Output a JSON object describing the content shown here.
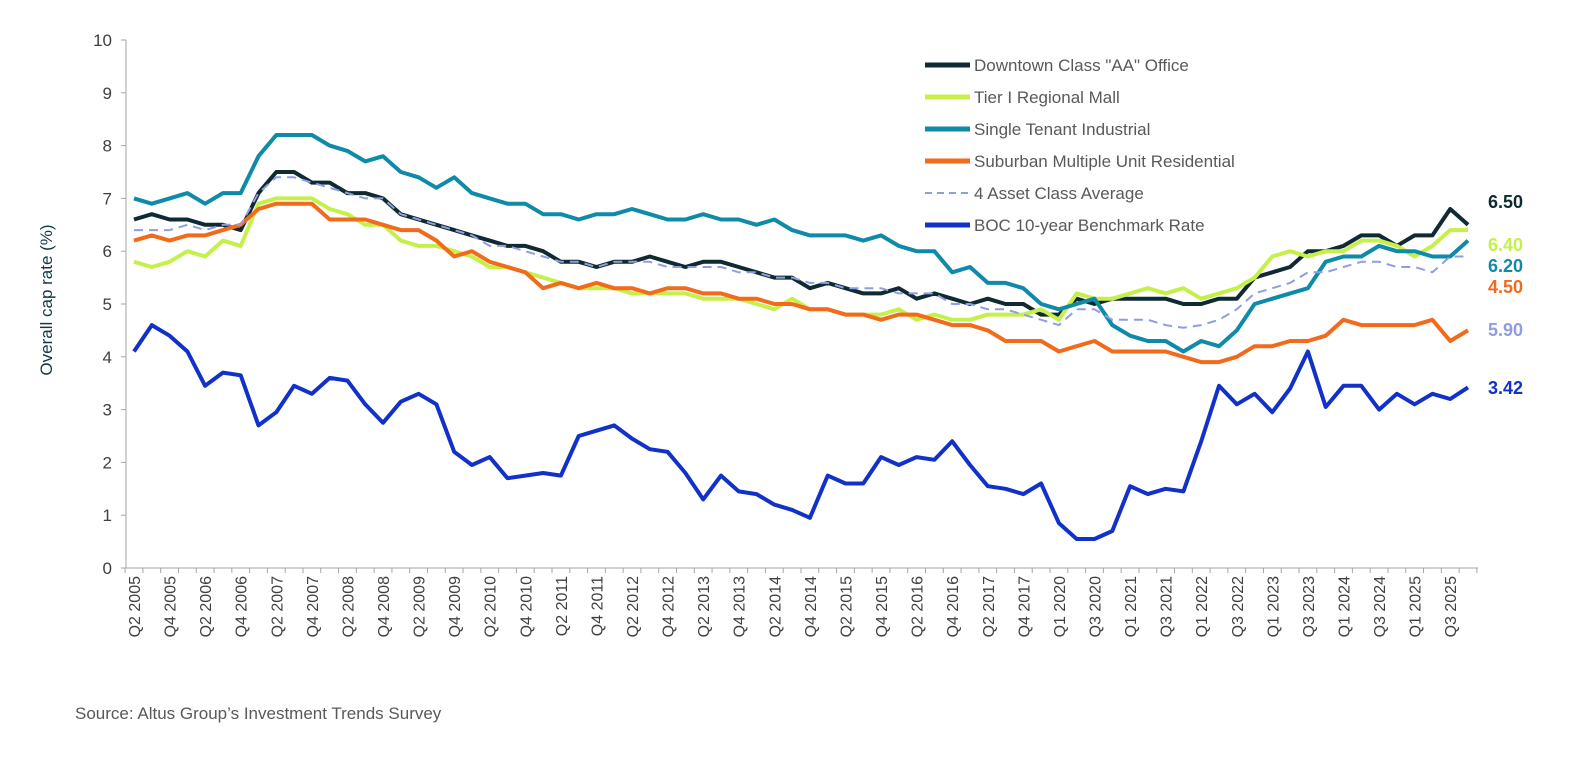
{
  "chart_data": {
    "type": "line",
    "title": "",
    "ylabel": "Overall cap rate (%)",
    "xlabel": "",
    "ylim": [
      0,
      10
    ],
    "y_ticks": [
      "0",
      "1",
      "2",
      "3",
      "4",
      "5",
      "6",
      "7",
      "8",
      "9",
      "10"
    ],
    "grid": false,
    "legend_placement": "top-right",
    "x_tick_labels": [
      "Q2 2005",
      "Q4 2005",
      "Q2 2006",
      "Q4 2006",
      "Q2 2007",
      "Q4 2007",
      "Q2 2008",
      "Q4 2008",
      "Q2 2009",
      "Q4 2009",
      "Q2 2010",
      "Q4 2010",
      "Q2 2011",
      "Q4 2011",
      "Q2 2012",
      "Q4 2012",
      "Q2 2013",
      "Q4 2013",
      "Q2 2014",
      "Q4 2014",
      "Q2 2015",
      "Q4 2015",
      "Q2 2016",
      "Q4 2016",
      "Q2 2017",
      "Q4 2017",
      "Q1 2020",
      "Q3 2020",
      "Q1 2021",
      "Q3 2021",
      "Q1 2022",
      "Q3 2022",
      "Q1 2023",
      "Q3 2023",
      "Q1 2024",
      "Q3 2024",
      "Q1 2025",
      "Q3 2025"
    ],
    "series": [
      {
        "name": "Downtown Class \"AA\" Office",
        "color": "#0f2a32",
        "style": "solid",
        "end_label": "6.50",
        "values": [
          6.6,
          6.7,
          6.6,
          6.6,
          6.5,
          6.5,
          6.4,
          7.1,
          7.5,
          7.5,
          7.3,
          7.3,
          7.1,
          7.1,
          7.0,
          6.7,
          6.6,
          6.5,
          6.4,
          6.3,
          6.2,
          6.1,
          6.1,
          6.0,
          5.8,
          5.8,
          5.7,
          5.8,
          5.8,
          5.9,
          5.8,
          5.7,
          5.8,
          5.8,
          5.7,
          5.6,
          5.5,
          5.5,
          5.3,
          5.4,
          5.3,
          5.2,
          5.2,
          5.3,
          5.1,
          5.2,
          5.1,
          5.0,
          5.1,
          5.0,
          5.0,
          4.8,
          4.8,
          5.1,
          5.0,
          5.1,
          5.1,
          5.1,
          5.1,
          5.0,
          5.0,
          5.1,
          5.1,
          5.5,
          5.6,
          5.7,
          6.0,
          6.0,
          6.1,
          6.3,
          6.3,
          6.1,
          6.3,
          6.3,
          6.8,
          6.5
        ]
      },
      {
        "name": "Tier I Regional Mall",
        "color": "#c5f04a",
        "style": "solid",
        "end_label": "6.40",
        "values": [
          5.8,
          5.7,
          5.8,
          6.0,
          5.9,
          6.2,
          6.1,
          6.9,
          7.0,
          7.0,
          7.0,
          6.8,
          6.7,
          6.5,
          6.5,
          6.2,
          6.1,
          6.1,
          6.0,
          5.9,
          5.7,
          5.7,
          5.6,
          5.5,
          5.4,
          5.3,
          5.3,
          5.3,
          5.2,
          5.2,
          5.2,
          5.2,
          5.1,
          5.1,
          5.1,
          5.0,
          4.9,
          5.1,
          4.9,
          4.9,
          4.8,
          4.8,
          4.8,
          4.9,
          4.7,
          4.8,
          4.7,
          4.7,
          4.8,
          4.8,
          4.8,
          4.9,
          4.7,
          5.2,
          5.1,
          5.1,
          5.2,
          5.3,
          5.2,
          5.3,
          5.1,
          5.2,
          5.3,
          5.5,
          5.9,
          6.0,
          5.9,
          6.0,
          6.0,
          6.2,
          6.2,
          6.1,
          5.9,
          6.1,
          6.4,
          6.4
        ]
      },
      {
        "name": "Single Tenant Industrial",
        "color": "#0f8aa8",
        "style": "solid",
        "end_label": "6.20",
        "values": [
          7.0,
          6.9,
          7.0,
          7.1,
          6.9,
          7.1,
          7.1,
          7.8,
          8.2,
          8.2,
          8.2,
          8.0,
          7.9,
          7.7,
          7.8,
          7.5,
          7.4,
          7.2,
          7.4,
          7.1,
          7.0,
          6.9,
          6.9,
          6.7,
          6.7,
          6.6,
          6.7,
          6.7,
          6.8,
          6.7,
          6.6,
          6.6,
          6.7,
          6.6,
          6.6,
          6.5,
          6.6,
          6.4,
          6.3,
          6.3,
          6.3,
          6.2,
          6.3,
          6.1,
          6.0,
          6.0,
          5.6,
          5.7,
          5.4,
          5.4,
          5.3,
          5.0,
          4.9,
          5.0,
          5.1,
          4.6,
          4.4,
          4.3,
          4.3,
          4.1,
          4.3,
          4.2,
          4.5,
          5.0,
          5.1,
          5.2,
          5.3,
          5.8,
          5.9,
          5.9,
          6.1,
          6.0,
          6.0,
          5.9,
          5.9,
          6.2
        ]
      },
      {
        "name": "Suburban Multiple Unit Residential",
        "color": "#f26a1b",
        "style": "solid",
        "end_label": "4.50",
        "values": [
          6.2,
          6.3,
          6.2,
          6.3,
          6.3,
          6.4,
          6.5,
          6.8,
          6.9,
          6.9,
          6.9,
          6.6,
          6.6,
          6.6,
          6.5,
          6.4,
          6.4,
          6.2,
          5.9,
          6.0,
          5.8,
          5.7,
          5.6,
          5.3,
          5.4,
          5.3,
          5.4,
          5.3,
          5.3,
          5.2,
          5.3,
          5.3,
          5.2,
          5.2,
          5.1,
          5.1,
          5.0,
          5.0,
          4.9,
          4.9,
          4.8,
          4.8,
          4.7,
          4.8,
          4.8,
          4.7,
          4.6,
          4.6,
          4.5,
          4.3,
          4.3,
          4.3,
          4.1,
          4.2,
          4.3,
          4.1,
          4.1,
          4.1,
          4.1,
          4.0,
          3.9,
          3.9,
          4.0,
          4.2,
          4.2,
          4.3,
          4.3,
          4.4,
          4.7,
          4.6,
          4.6,
          4.6,
          4.6,
          4.7,
          4.3,
          4.5
        ]
      },
      {
        "name": "4 Asset Class Average",
        "color": "#8f9ee0",
        "style": "dashed",
        "end_label": "5.90",
        "values": [
          6.4,
          6.4,
          6.4,
          6.5,
          6.4,
          6.5,
          6.5,
          7.1,
          7.4,
          7.4,
          7.3,
          7.2,
          7.1,
          7.0,
          7.0,
          6.7,
          6.6,
          6.5,
          6.4,
          6.3,
          6.1,
          6.1,
          6.0,
          5.9,
          5.8,
          5.8,
          5.7,
          5.8,
          5.8,
          5.8,
          5.7,
          5.7,
          5.7,
          5.7,
          5.6,
          5.6,
          5.5,
          5.5,
          5.4,
          5.4,
          5.3,
          5.3,
          5.3,
          5.2,
          5.2,
          5.2,
          5.0,
          5.0,
          4.9,
          4.9,
          4.8,
          4.7,
          4.6,
          4.9,
          4.9,
          4.7,
          4.7,
          4.7,
          4.6,
          4.55,
          4.6,
          4.7,
          4.9,
          5.2,
          5.3,
          5.4,
          5.6,
          5.6,
          5.7,
          5.8,
          5.8,
          5.7,
          5.7,
          5.6,
          5.9,
          5.9
        ]
      },
      {
        "name": "BOC 10-year Benchmark Rate",
        "color": "#1131c8",
        "style": "solid",
        "end_label": "3.42",
        "values": [
          4.1,
          4.6,
          4.4,
          4.1,
          3.45,
          3.7,
          3.65,
          2.7,
          2.95,
          3.45,
          3.3,
          3.6,
          3.55,
          3.1,
          2.75,
          3.15,
          3.3,
          3.1,
          2.2,
          1.95,
          2.1,
          1.7,
          1.75,
          1.8,
          1.75,
          2.5,
          2.6,
          2.7,
          2.45,
          2.25,
          2.2,
          1.8,
          1.3,
          1.75,
          1.45,
          1.4,
          1.2,
          1.1,
          0.95,
          1.75,
          1.6,
          1.6,
          2.1,
          1.95,
          2.1,
          2.05,
          2.4,
          1.95,
          1.55,
          1.5,
          1.4,
          1.6,
          0.85,
          0.55,
          0.55,
          0.7,
          1.55,
          1.4,
          1.5,
          1.45,
          2.4,
          3.45,
          3.1,
          3.3,
          2.95,
          3.4,
          4.1,
          3.05,
          3.45,
          3.45,
          3.0,
          3.3,
          3.1,
          3.3,
          3.2,
          3.42
        ]
      }
    ]
  },
  "source": "Source:  Altus Group’s Investment Trends Survey"
}
